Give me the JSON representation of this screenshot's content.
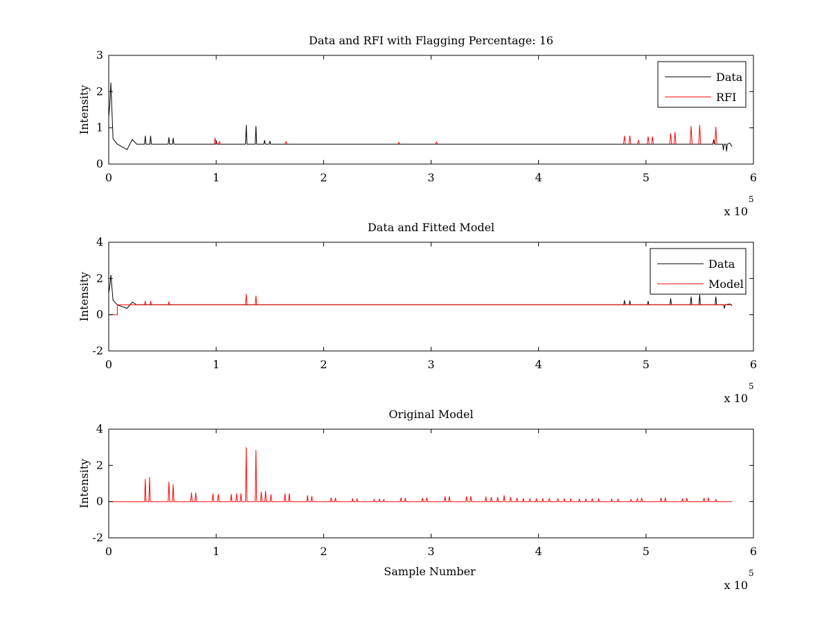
{
  "chart_data": [
    {
      "type": "line",
      "title": "Data and RFI with Flagging Percentage: 16",
      "xlabel": "",
      "ylabel": "Intensity",
      "xlim": [
        0,
        600000
      ],
      "ylim": [
        0,
        3
      ],
      "xticks": [
        "0",
        "1",
        "2",
        "3",
        "4",
        "5",
        "6"
      ],
      "yticks": [
        "0",
        "1",
        "2",
        "3"
      ],
      "x_multiplier": {
        "base": "x 10",
        "exponent": "5"
      },
      "legend": {
        "placement": "top-right",
        "entries": [
          "Data",
          "RFI"
        ]
      },
      "grid": false,
      "series": [
        {
          "name": "Data",
          "color": "#000000",
          "baseline": 0.55,
          "x_end": 580000,
          "features": [
            {
              "x": 0,
              "y": 1.3
            },
            {
              "x": 1000,
              "y": 1.65
            },
            {
              "x": 2000,
              "y": 2.25
            },
            {
              "x": 4000,
              "y": 0.7
            },
            {
              "x": 8000,
              "y": 0.55
            },
            {
              "x": 17000,
              "y": 0.4
            },
            {
              "x": 22000,
              "y": 0.68
            },
            {
              "x": 26000,
              "y": 0.55
            }
          ],
          "spikes": [
            {
              "x": 34000,
              "y": 0.78
            },
            {
              "x": 39000,
              "y": 0.78
            },
            {
              "x": 56000,
              "y": 0.74
            },
            {
              "x": 60000,
              "y": 0.72
            },
            {
              "x": 100000,
              "y": 0.65
            },
            {
              "x": 128000,
              "y": 1.08
            },
            {
              "x": 137000,
              "y": 1.05
            },
            {
              "x": 145000,
              "y": 0.66
            },
            {
              "x": 150000,
              "y": 0.64
            },
            {
              "x": 563000,
              "y": 0.68
            }
          ],
          "dips": [
            {
              "x": 572000,
              "y": 0.38
            },
            {
              "x": 575000,
              "y": 0.35
            }
          ],
          "tail": [
            {
              "x": 578000,
              "y": 0.58
            },
            {
              "x": 580000,
              "y": 0.48
            }
          ]
        },
        {
          "name": "RFI",
          "color": "#ff0000",
          "baseline": 0.55,
          "spikes": [
            {
              "x": 99000,
              "y": 0.72
            },
            {
              "x": 103000,
              "y": 0.62
            },
            {
              "x": 165000,
              "y": 0.62
            },
            {
              "x": 270000,
              "y": 0.6
            },
            {
              "x": 305000,
              "y": 0.61
            },
            {
              "x": 480000,
              "y": 0.78
            },
            {
              "x": 485000,
              "y": 0.78
            },
            {
              "x": 493000,
              "y": 0.65
            },
            {
              "x": 502000,
              "y": 0.76
            },
            {
              "x": 506000,
              "y": 0.76
            },
            {
              "x": 523000,
              "y": 0.85
            },
            {
              "x": 527000,
              "y": 0.88
            },
            {
              "x": 542000,
              "y": 1.05
            },
            {
              "x": 550000,
              "y": 1.08
            },
            {
              "x": 565000,
              "y": 1.03
            }
          ]
        }
      ]
    },
    {
      "type": "line",
      "title": "Data and Fitted Model",
      "xlabel": "",
      "ylabel": "Intensity",
      "xlim": [
        0,
        600000
      ],
      "ylim": [
        -2,
        4
      ],
      "xticks": [
        "0",
        "1",
        "2",
        "3",
        "4",
        "5",
        "6"
      ],
      "yticks": [
        "-2",
        "0",
        "2",
        "4"
      ],
      "x_multiplier": {
        "base": "x 10",
        "exponent": "5"
      },
      "legend": {
        "placement": "top-right",
        "entries": [
          "Data",
          "Model"
        ]
      },
      "grid": false,
      "series": [
        {
          "name": "Data",
          "color": "#000000",
          "baseline": 0.55,
          "x_end": 580000,
          "features": [
            {
              "x": 0,
              "y": 1.2
            },
            {
              "x": 1000,
              "y": 1.6
            },
            {
              "x": 2000,
              "y": 2.2
            },
            {
              "x": 4000,
              "y": 0.8
            },
            {
              "x": 8000,
              "y": 0.55
            },
            {
              "x": 17000,
              "y": 0.35
            },
            {
              "x": 22000,
              "y": 0.7
            },
            {
              "x": 26000,
              "y": 0.55
            }
          ],
          "spikes": [
            {
              "x": 480000,
              "y": 0.8
            },
            {
              "x": 485000,
              "y": 0.78
            },
            {
              "x": 502000,
              "y": 0.76
            },
            {
              "x": 523000,
              "y": 0.9
            },
            {
              "x": 542000,
              "y": 1.0
            },
            {
              "x": 550000,
              "y": 1.1
            },
            {
              "x": 565000,
              "y": 1.0
            }
          ],
          "dips": [
            {
              "x": 573000,
              "y": 0.35
            }
          ],
          "tail": [
            {
              "x": 578000,
              "y": 0.6
            },
            {
              "x": 580000,
              "y": 0.5
            }
          ]
        },
        {
          "name": "Model",
          "color": "#ff0000",
          "baseline": 0.55,
          "x_end": 580000,
          "step": [
            {
              "x": 0,
              "y": 0.0
            },
            {
              "x": 8000,
              "y": 0.0
            },
            {
              "x": 8000,
              "y": 0.55
            }
          ],
          "spikes": [
            {
              "x": 34000,
              "y": 0.75
            },
            {
              "x": 39000,
              "y": 0.75
            },
            {
              "x": 56000,
              "y": 0.7
            },
            {
              "x": 128000,
              "y": 1.15
            },
            {
              "x": 137000,
              "y": 1.05
            }
          ]
        }
      ]
    },
    {
      "type": "line",
      "title": "Original Model",
      "xlabel": "Sample Number",
      "ylabel": "Intensity",
      "xlim": [
        0,
        600000
      ],
      "ylim": [
        -2,
        4
      ],
      "xticks": [
        "0",
        "1",
        "2",
        "3",
        "4",
        "5",
        "6"
      ],
      "yticks": [
        "-2",
        "0",
        "2",
        "4"
      ],
      "x_multiplier": {
        "base": "x 10",
        "exponent": "5"
      },
      "grid": false,
      "series": [
        {
          "color": "#ff0000",
          "baseline": 0.0,
          "x_end": 580000,
          "spikes": [
            {
              "x": 34000,
              "y": 1.25
            },
            {
              "x": 38000,
              "y": 1.35
            },
            {
              "x": 56000,
              "y": 1.1
            },
            {
              "x": 60000,
              "y": 0.95
            },
            {
              "x": 77000,
              "y": 0.5
            },
            {
              "x": 81000,
              "y": 0.5
            },
            {
              "x": 97000,
              "y": 0.45
            },
            {
              "x": 102000,
              "y": 0.42
            },
            {
              "x": 114000,
              "y": 0.42
            },
            {
              "x": 119000,
              "y": 0.45
            },
            {
              "x": 123000,
              "y": 0.45
            },
            {
              "x": 128000,
              "y": 3.0
            },
            {
              "x": 137000,
              "y": 2.85
            },
            {
              "x": 142000,
              "y": 0.55
            },
            {
              "x": 146000,
              "y": 0.6
            },
            {
              "x": 151000,
              "y": 0.4
            },
            {
              "x": 164000,
              "y": 0.45
            },
            {
              "x": 168000,
              "y": 0.45
            },
            {
              "x": 185000,
              "y": 0.35
            },
            {
              "x": 189000,
              "y": 0.3
            },
            {
              "x": 207000,
              "y": 0.22
            },
            {
              "x": 211000,
              "y": 0.2
            },
            {
              "x": 227000,
              "y": 0.15
            },
            {
              "x": 231000,
              "y": 0.15
            },
            {
              "x": 247000,
              "y": 0.12
            },
            {
              "x": 252000,
              "y": 0.14
            },
            {
              "x": 256000,
              "y": 0.12
            },
            {
              "x": 272000,
              "y": 0.22
            },
            {
              "x": 276000,
              "y": 0.2
            },
            {
              "x": 292000,
              "y": 0.2
            },
            {
              "x": 296000,
              "y": 0.22
            },
            {
              "x": 313000,
              "y": 0.3
            },
            {
              "x": 317000,
              "y": 0.3
            },
            {
              "x": 333000,
              "y": 0.3
            },
            {
              "x": 337000,
              "y": 0.3
            },
            {
              "x": 351000,
              "y": 0.28
            },
            {
              "x": 356000,
              "y": 0.25
            },
            {
              "x": 362000,
              "y": 0.25
            },
            {
              "x": 368000,
              "y": 0.35
            },
            {
              "x": 374000,
              "y": 0.25
            },
            {
              "x": 380000,
              "y": 0.2
            },
            {
              "x": 386000,
              "y": 0.18
            },
            {
              "x": 392000,
              "y": 0.15
            },
            {
              "x": 398000,
              "y": 0.15
            },
            {
              "x": 404000,
              "y": 0.18
            },
            {
              "x": 410000,
              "y": 0.18
            },
            {
              "x": 418000,
              "y": 0.15
            },
            {
              "x": 424000,
              "y": 0.15
            },
            {
              "x": 430000,
              "y": 0.15
            },
            {
              "x": 438000,
              "y": 0.14
            },
            {
              "x": 444000,
              "y": 0.16
            },
            {
              "x": 450000,
              "y": 0.18
            },
            {
              "x": 456000,
              "y": 0.15
            },
            {
              "x": 468000,
              "y": 0.14
            },
            {
              "x": 474000,
              "y": 0.14
            },
            {
              "x": 486000,
              "y": 0.12
            },
            {
              "x": 492000,
              "y": 0.15
            },
            {
              "x": 496000,
              "y": 0.2
            },
            {
              "x": 514000,
              "y": 0.2
            },
            {
              "x": 518000,
              "y": 0.22
            },
            {
              "x": 534000,
              "y": 0.18
            },
            {
              "x": 538000,
              "y": 0.2
            },
            {
              "x": 554000,
              "y": 0.2
            },
            {
              "x": 558000,
              "y": 0.22
            },
            {
              "x": 565000,
              "y": 0.12
            }
          ]
        }
      ]
    }
  ]
}
